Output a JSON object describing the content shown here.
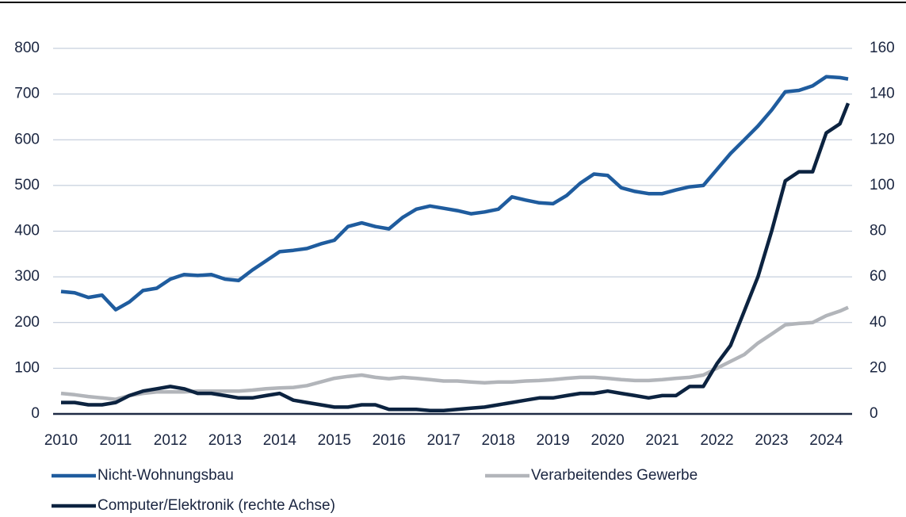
{
  "chart_data": {
    "type": "line",
    "x": [
      2010,
      2010.25,
      2010.5,
      2010.75,
      2011,
      2011.25,
      2011.5,
      2011.75,
      2012,
      2012.25,
      2012.5,
      2012.75,
      2013,
      2013.25,
      2013.5,
      2013.75,
      2014,
      2014.25,
      2014.5,
      2014.75,
      2015,
      2015.25,
      2015.5,
      2015.75,
      2016,
      2016.25,
      2016.5,
      2016.75,
      2017,
      2017.25,
      2017.5,
      2017.75,
      2018,
      2018.25,
      2018.5,
      2018.75,
      2019,
      2019.25,
      2019.5,
      2019.75,
      2020,
      2020.25,
      2020.5,
      2020.75,
      2021,
      2021.25,
      2021.5,
      2021.75,
      2022,
      2022.25,
      2022.5,
      2022.75,
      2023,
      2023.25,
      2023.5,
      2023.75,
      2024,
      2024.25,
      2024.4
    ],
    "series": [
      {
        "name": "Nicht-Wohnungsbau",
        "color": "#1f5c9e",
        "values": [
          268,
          265,
          255,
          260,
          228,
          245,
          270,
          275,
          295,
          305,
          303,
          305,
          295,
          292,
          315,
          335,
          355,
          358,
          362,
          372,
          380,
          410,
          418,
          410,
          405,
          430,
          448,
          455,
          450,
          445,
          438,
          442,
          448,
          475,
          468,
          462,
          460,
          478,
          505,
          525,
          522,
          495,
          487,
          482,
          482,
          490,
          497,
          500,
          535,
          570,
          600,
          630,
          665,
          705,
          708,
          718,
          738,
          736,
          733
        ]
      },
      {
        "name": "Verarbeitendes Gewerbe",
        "color": "#b2b5ba",
        "values": [
          45,
          42,
          38,
          35,
          32,
          40,
          45,
          48,
          48,
          48,
          50,
          50,
          50,
          50,
          52,
          55,
          57,
          58,
          62,
          70,
          78,
          82,
          85,
          80,
          77,
          80,
          78,
          75,
          72,
          72,
          70,
          68,
          70,
          70,
          72,
          73,
          75,
          78,
          80,
          80,
          78,
          75,
          73,
          73,
          75,
          78,
          80,
          85,
          100,
          115,
          130,
          155,
          175,
          195,
          198,
          200,
          215,
          225,
          233
        ]
      },
      {
        "name": "Computer/Elektronik (rechte Achse)",
        "color": "#0c2340",
        "axis": "y2",
        "values": [
          5,
          5,
          4,
          4,
          5,
          8,
          10,
          11,
          12,
          11,
          9,
          9,
          8,
          7,
          7,
          8,
          9,
          6,
          5,
          4,
          3,
          3,
          4,
          4,
          2,
          2,
          2,
          1.5,
          1.5,
          2,
          2.5,
          3,
          4,
          5,
          6,
          7,
          7,
          8,
          9,
          9,
          10,
          9,
          8,
          7,
          8,
          8,
          12,
          12,
          22,
          30,
          45,
          60,
          80,
          102,
          106,
          106,
          123,
          127,
          136
        ]
      }
    ],
    "xlim": [
      2010,
      2024.4
    ],
    "xticks": [
      2010,
      2011,
      2012,
      2013,
      2014,
      2015,
      2016,
      2017,
      2018,
      2019,
      2020,
      2021,
      2022,
      2023,
      2024
    ],
    "ylim": [
      0,
      800
    ],
    "yticks": [
      0,
      100,
      200,
      300,
      400,
      500,
      600,
      700,
      800
    ],
    "y2lim": [
      0,
      160
    ],
    "y2ticks": [
      0,
      20,
      40,
      60,
      80,
      100,
      120,
      140,
      160
    ],
    "grid": true
  }
}
